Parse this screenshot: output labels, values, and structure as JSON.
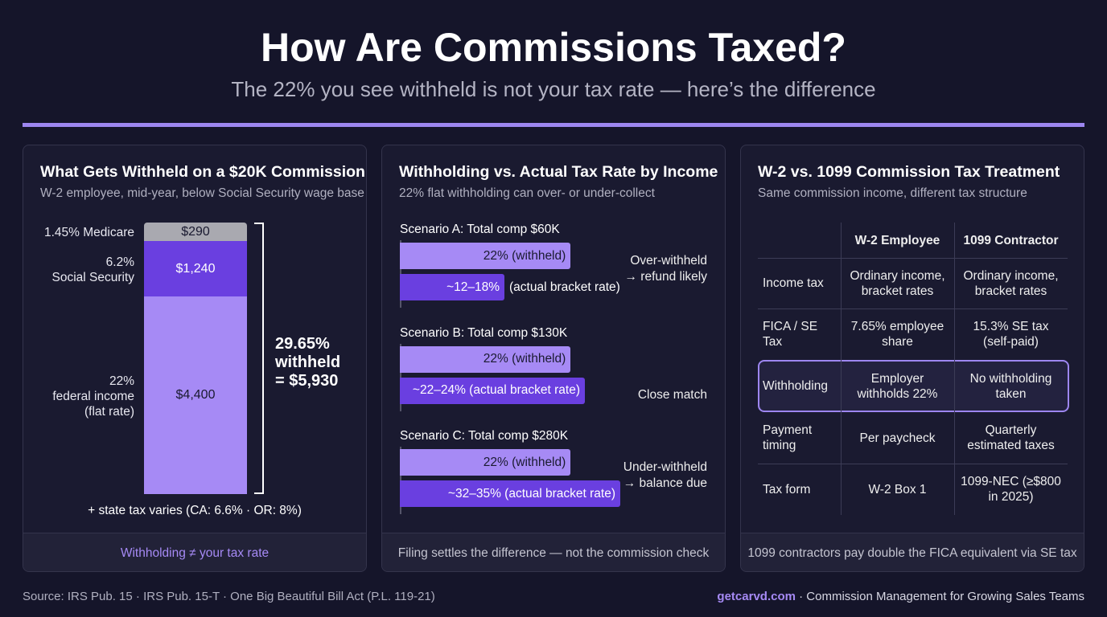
{
  "header": {
    "title": "How Are Commissions Taxed?",
    "subtitle": "The 22% you see withheld is not your tax rate — here’s the difference"
  },
  "colors": {
    "accent": "#9d86f0",
    "federal": "#a68af5",
    "social_security": "#6a3fe0",
    "medicare": "#a9a9b0",
    "background": "#15152a"
  },
  "panel1": {
    "title": "What Gets Withheld on a $20K Commission",
    "subtitle": "W-2 employee, mid-year, below Social Security wage base",
    "total_lines": [
      "29.65%",
      "withheld",
      "= $5,930"
    ],
    "state_note": "+ state tax varies (CA: 6.6% · OR: 8%)",
    "footer": "Withholding ≠ your tax rate"
  },
  "panel2": {
    "title": "Withholding vs. Actual Tax Rate by Income",
    "subtitle": "22% flat withholding can over- or under-collect",
    "footer": "Filing settles the difference — not the commission check"
  },
  "panel3": {
    "title": "W-2 vs. 1099 Commission Tax Treatment",
    "subtitle": "Same commission income, different tax structure",
    "headers": [
      "",
      "W-2 Employee",
      "1099 Contractor"
    ],
    "rows": [
      [
        "Income tax",
        "Ordinary income, bracket rates",
        "Ordinary income, bracket rates"
      ],
      [
        "FICA / SE Tax",
        "7.65% employee share",
        "15.3% SE tax (self-paid)"
      ],
      [
        "Withholding",
        "Employer withholds 22%",
        "No withholding taken"
      ],
      [
        "Payment timing",
        "Per paycheck",
        "Quarterly estimated taxes"
      ],
      [
        "Tax form",
        "W-2 Box 1",
        "1099-NEC (≥$800 in 2025)"
      ]
    ],
    "highlighted_row": "Withholding",
    "footer": "1099 contractors pay double the FICA equivalent via SE tax"
  },
  "chart_data": [
    {
      "type": "bar",
      "stacked": true,
      "categories": [
        "1.45% Medicare",
        "6.2% Social Security",
        "22% federal income (flat rate)"
      ],
      "values": [
        290,
        1240,
        4400
      ],
      "labels": [
        "$290",
        "$1,240",
        "$4,400"
      ],
      "total": 5930
    },
    {
      "type": "bar",
      "orientation": "horizontal",
      "scenarios": [
        {
          "label": "Scenario A: Total comp $60K",
          "withheld": 22,
          "actual": [
            12,
            18
          ],
          "withheld_label": "22% (withheld)",
          "actual_label": "~12–18%",
          "actual_suffix": "(actual bracket rate)",
          "note": [
            "Over-withheld",
            "→ refund likely"
          ]
        },
        {
          "label": "Scenario B: Total comp $130K",
          "withheld": 22,
          "actual": [
            22,
            24
          ],
          "withheld_label": "22% (withheld)",
          "actual_label": "~22–24% (actual bracket rate)",
          "actual_suffix": "",
          "note": [
            "Close match"
          ]
        },
        {
          "label": "Scenario C: Total comp $280K",
          "withheld": 22,
          "actual": [
            32,
            35
          ],
          "withheld_label": "22% (withheld)",
          "actual_label": "~32–35% (actual bracket rate)",
          "actual_suffix": "",
          "note": [
            "Under-withheld",
            "→ balance due"
          ]
        }
      ]
    }
  ],
  "footer": {
    "source": "Source: IRS Pub. 15 · IRS Pub. 15-T · One Big Beautiful Bill Act (P.L. 119-21)",
    "brand": "getcarvd.com",
    "tagline": " · Commission Management for Growing Sales Teams"
  }
}
